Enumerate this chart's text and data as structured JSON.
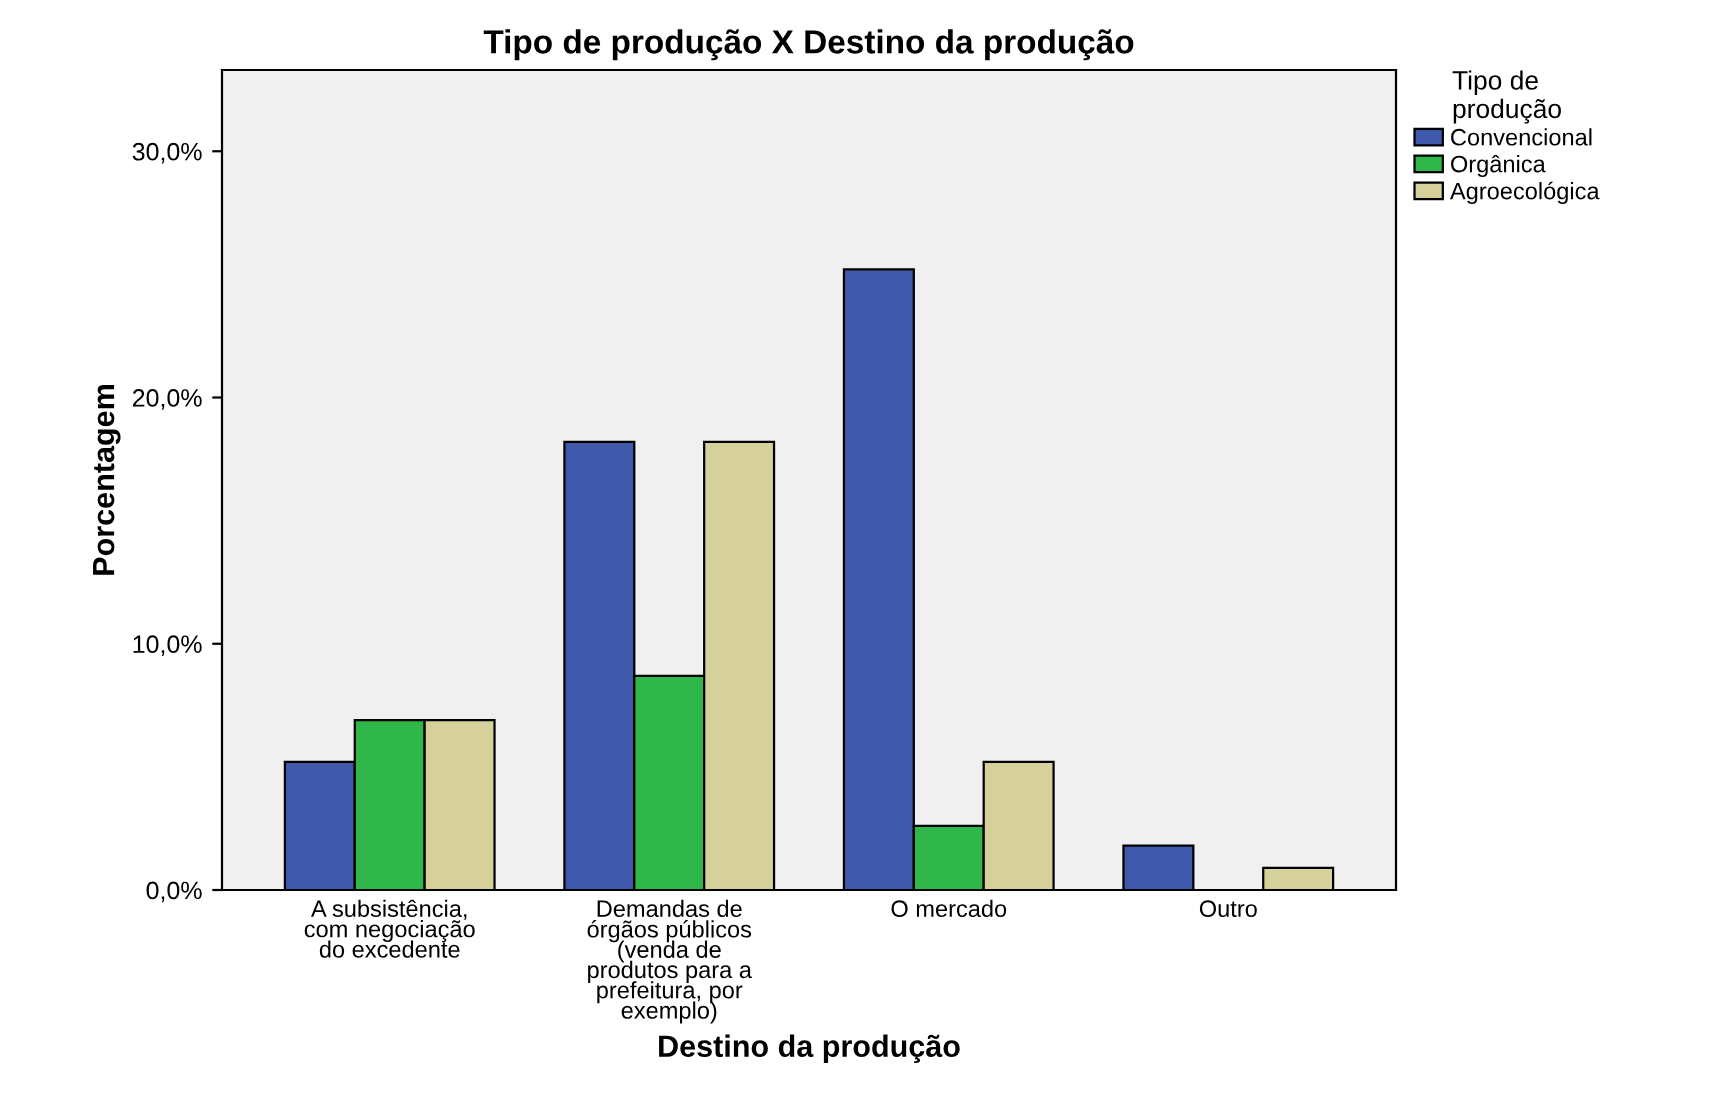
{
  "chart_data": {
    "type": "bar",
    "title": "Tipo de produção X Destino da produção",
    "xlabel": "Destino da produção",
    "ylabel": "Porcentagem",
    "legend_title": "Tipo de\nprodução",
    "categories": [
      "A subsistência,\ncom negociação\ndo excedente",
      "Demandas de\nórgãos públicos\n(venda de\nprodutos para a\nprefeitura, por\nexemplo)",
      "O mercado",
      "Outro"
    ],
    "series": [
      {
        "name": "Convencional",
        "color": "#3e58ac",
        "values": [
          5.2,
          18.2,
          25.2,
          1.8
        ]
      },
      {
        "name": "Orgânica",
        "color": "#2fb74a",
        "values": [
          6.9,
          8.7,
          2.6,
          null
        ]
      },
      {
        "name": "Agroecológica",
        "color": "#d6d09a",
        "values": [
          6.9,
          18.2,
          5.2,
          0.9
        ]
      }
    ],
    "ylim": [
      0,
      33.3
    ],
    "yticks": [
      {
        "value": 0,
        "label": "0,0%"
      },
      {
        "value": 10,
        "label": "10,0%"
      },
      {
        "value": 20,
        "label": "20,0%"
      },
      {
        "value": 30,
        "label": "30,0%"
      }
    ],
    "grid": false,
    "legend": "top right"
  }
}
